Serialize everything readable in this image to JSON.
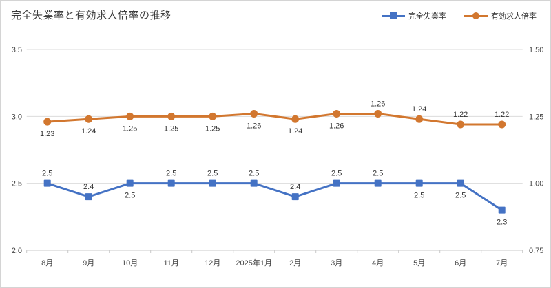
{
  "chart_data": {
    "type": "line",
    "title": "完全失業率と有効求人倍率の推移",
    "categories": [
      "8月",
      "9月",
      "10月",
      "11月",
      "12月",
      "2025年1月",
      "2月",
      "3月",
      "4月",
      "5月",
      "6月",
      "7月"
    ],
    "series": [
      {
        "name": "完全失業率",
        "axis": "left",
        "color": "#4472C4",
        "marker": "square",
        "values": [
          2.5,
          2.4,
          2.5,
          2.5,
          2.5,
          2.5,
          2.4,
          2.5,
          2.5,
          2.5,
          2.5,
          2.3
        ],
        "labels": [
          "2.5",
          "2.4",
          "2.5",
          "2.5",
          "2.5",
          "2.5",
          "2.4",
          "2.5",
          "2.5",
          "2.5",
          "2.5",
          "2.3"
        ],
        "label_positions": [
          "above",
          "above",
          "below",
          "above",
          "above",
          "above",
          "above",
          "above",
          "above",
          "below",
          "below",
          "below"
        ]
      },
      {
        "name": "有効求人倍率",
        "axis": "right",
        "color": "#D2772F",
        "marker": "circle",
        "values": [
          1.23,
          1.24,
          1.25,
          1.25,
          1.25,
          1.26,
          1.24,
          1.26,
          1.26,
          1.24,
          1.22,
          1.22
        ],
        "labels": [
          "1.23",
          "1.24",
          "1.25",
          "1.25",
          "1.25",
          "1.26",
          "1.24",
          "1.26",
          "1.26",
          "1.24",
          "1.22",
          "1.22"
        ],
        "label_positions": [
          "below",
          "below",
          "below",
          "below",
          "below",
          "below",
          "below",
          "below",
          "above",
          "above",
          "above",
          "above"
        ]
      }
    ],
    "left_axis": {
      "min": 2.0,
      "max": 3.5,
      "ticks": [
        "3.5",
        "3.0",
        "2.5",
        "2.0"
      ]
    },
    "right_axis": {
      "min": 0.75,
      "max": 1.5,
      "ticks": [
        "1.50",
        "1.25",
        "1.00",
        "0.75"
      ]
    },
    "grid": true,
    "legend_position": "top-right",
    "colors": {
      "gridline": "#DBDBDB",
      "axis_line": "#C8C8C8",
      "axis_text": "#454545",
      "data_label_text": "#333333",
      "category_text": "#454545",
      "title_text": "#3D3D3D"
    }
  }
}
